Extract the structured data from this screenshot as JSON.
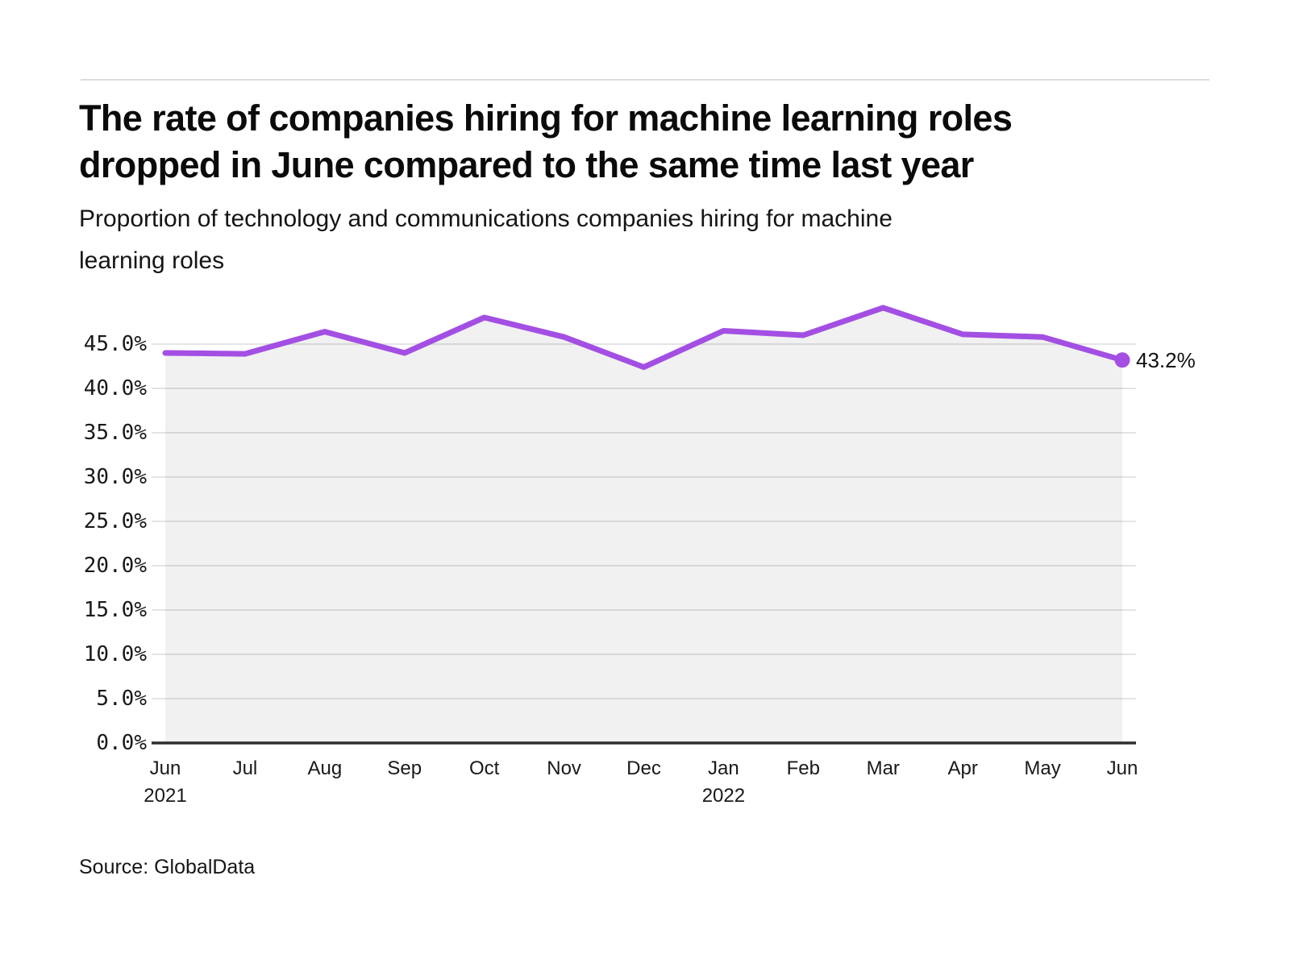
{
  "header": {
    "title_line1": "The rate of companies hiring for machine learning roles",
    "title_line2": "dropped in June compared to the same time last year",
    "subtitle_line1": "Proportion of technology and communications companies hiring for machine",
    "subtitle_line2": "learning roles"
  },
  "footer": {
    "source": "Source: GlobalData"
  },
  "chart_data": {
    "type": "area",
    "title": "The rate of companies hiring for machine learning roles dropped in June compared to the same time last year",
    "subtitle": "Proportion of technology and communications companies hiring for machine learning roles",
    "categories": [
      "Jun 2021",
      "Jul",
      "Aug",
      "Sep",
      "Oct",
      "Nov",
      "Dec",
      "Jan 2022",
      "Feb",
      "Mar",
      "Apr",
      "May",
      "Jun"
    ],
    "x_tick_labels": [
      {
        "month": "Jun",
        "year": "2021"
      },
      {
        "month": "Jul"
      },
      {
        "month": "Aug"
      },
      {
        "month": "Sep"
      },
      {
        "month": "Oct"
      },
      {
        "month": "Nov"
      },
      {
        "month": "Dec"
      },
      {
        "month": "Jan",
        "year": "2022"
      },
      {
        "month": "Feb"
      },
      {
        "month": "Mar"
      },
      {
        "month": "Apr"
      },
      {
        "month": "May"
      },
      {
        "month": "Jun"
      }
    ],
    "values": [
      44.0,
      43.9,
      46.4,
      44.0,
      48.0,
      45.8,
      42.4,
      46.5,
      46.0,
      49.1,
      46.1,
      45.8,
      43.2
    ],
    "unit": "%",
    "ylim": [
      0,
      50
    ],
    "ytick_step": 5,
    "yticks": [
      "0.0%",
      "5.0%",
      "10.0%",
      "15.0%",
      "20.0%",
      "25.0%",
      "30.0%",
      "35.0%",
      "40.0%",
      "45.0%"
    ],
    "end_label": "43.2%",
    "grid": true,
    "legend": "none",
    "colors": {
      "line": "#A34FE3",
      "area": "rgba(0, 0, 0, 0.055)",
      "grid": "#E4E4E4",
      "axis": "#2E2E2E",
      "text": "#191919",
      "rule": "#DBDBDB"
    }
  }
}
